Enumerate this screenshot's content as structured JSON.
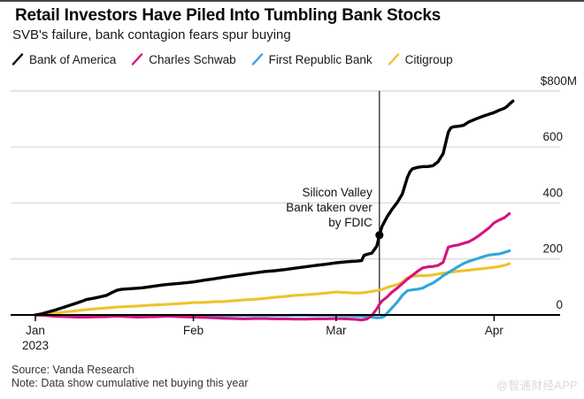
{
  "header": {
    "title": "Retail Investors Have Piled Into Tumbling Bank Stocks",
    "subtitle": "SVB's failure, bank contagion fears spur buying"
  },
  "legend": {
    "items": [
      {
        "label": "Bank of America",
        "color": "#000000"
      },
      {
        "label": "Charles Schwab",
        "color": "#d6137c"
      },
      {
        "label": "First Republic Bank",
        "color": "#2fa6db"
      },
      {
        "label": "Citigroup",
        "color": "#edc32c"
      }
    ]
  },
  "chart_data": {
    "type": "line",
    "title": "Retail Investors Have Piled Into Tumbling Bank Stocks",
    "subtitle": "SVB's failure, bank contagion fears spur buying",
    "unit": "USD millions, cumulative net buying",
    "ylim": [
      -20,
      800
    ],
    "grid": "horizontal",
    "legend_position": "top",
    "colors": {
      "grid": "#dadada",
      "axis": "#000000",
      "annotation": "#111111"
    },
    "y_axis": {
      "ticks": [
        {
          "value": 0,
          "label": "0"
        },
        {
          "value": 200,
          "label": "200"
        },
        {
          "value": 400,
          "label": "400"
        },
        {
          "value": 600,
          "label": "600"
        },
        {
          "value": 800,
          "label": "$800M"
        }
      ]
    },
    "x_axis": {
      "ticks": [
        {
          "label": "Jan",
          "sublabel": "2023",
          "day": 0
        },
        {
          "label": "Feb",
          "sublabel": "",
          "day": 31
        },
        {
          "label": "Mar",
          "sublabel": "",
          "day": 59
        },
        {
          "label": "Apr",
          "sublabel": "",
          "day": 90
        }
      ]
    },
    "annotation": {
      "text_lines": [
        "Silicon Valley",
        "Bank taken over",
        "by FDIC"
      ],
      "day": 67.5,
      "marker_series": "Bank of America",
      "marker_value": 285
    },
    "series": [
      {
        "name": "Citigroup",
        "color": "#edc32c",
        "points": [
          [
            0,
            0
          ],
          [
            2,
            3
          ],
          [
            4,
            7
          ],
          [
            6,
            11
          ],
          [
            8,
            15
          ],
          [
            10,
            19
          ],
          [
            12,
            22
          ],
          [
            14,
            25
          ],
          [
            16,
            28
          ],
          [
            18,
            30
          ],
          [
            20,
            32
          ],
          [
            22,
            34
          ],
          [
            24,
            36
          ],
          [
            26,
            38
          ],
          [
            28,
            40
          ],
          [
            31,
            44
          ],
          [
            33,
            45
          ],
          [
            35,
            47
          ],
          [
            37,
            48
          ],
          [
            39,
            51
          ],
          [
            41,
            54
          ],
          [
            43,
            56
          ],
          [
            45,
            59
          ],
          [
            47,
            63
          ],
          [
            49,
            66
          ],
          [
            51,
            70
          ],
          [
            53,
            72
          ],
          [
            55,
            75
          ],
          [
            57,
            78
          ],
          [
            59,
            82
          ],
          [
            60,
            81
          ],
          [
            61,
            80
          ],
          [
            62,
            79
          ],
          [
            63,
            78
          ],
          [
            64,
            79
          ],
          [
            65,
            81
          ],
          [
            66,
            84
          ],
          [
            67,
            87
          ],
          [
            68,
            91
          ],
          [
            69,
            98
          ],
          [
            70,
            104
          ],
          [
            71,
            108
          ],
          [
            72,
            118
          ],
          [
            73,
            133
          ],
          [
            74,
            138
          ],
          [
            75,
            140
          ],
          [
            76,
            140
          ],
          [
            77,
            141
          ],
          [
            78,
            143
          ],
          [
            79,
            146
          ],
          [
            80,
            149
          ],
          [
            81,
            152
          ],
          [
            82,
            154
          ],
          [
            83,
            156
          ],
          [
            84,
            158
          ],
          [
            85,
            160
          ],
          [
            86,
            162
          ],
          [
            87,
            164
          ],
          [
            88,
            166
          ],
          [
            89,
            168
          ],
          [
            90,
            170
          ],
          [
            91,
            173
          ],
          [
            92,
            177
          ],
          [
            93,
            183
          ]
        ]
      },
      {
        "name": "First Republic Bank",
        "color": "#2fa6db",
        "points": [
          [
            0,
            0
          ],
          [
            2,
            -1
          ],
          [
            4,
            -2
          ],
          [
            6,
            -3
          ],
          [
            8,
            -3
          ],
          [
            10,
            -2
          ],
          [
            12,
            -2
          ],
          [
            14,
            -2
          ],
          [
            16,
            -3
          ],
          [
            18,
            -2
          ],
          [
            20,
            -2
          ],
          [
            22,
            -3
          ],
          [
            24,
            -3
          ],
          [
            26,
            -3
          ],
          [
            28,
            -2
          ],
          [
            31,
            -2
          ],
          [
            33,
            -3
          ],
          [
            35,
            -3
          ],
          [
            37,
            -3
          ],
          [
            39,
            -2
          ],
          [
            41,
            -2
          ],
          [
            43,
            -2
          ],
          [
            45,
            -2
          ],
          [
            47,
            -2
          ],
          [
            49,
            -2
          ],
          [
            51,
            -1
          ],
          [
            53,
            -1
          ],
          [
            55,
            -2
          ],
          [
            57,
            -2
          ],
          [
            59,
            -2
          ],
          [
            61,
            -3
          ],
          [
            63,
            -4
          ],
          [
            64,
            -5
          ],
          [
            65,
            -6
          ],
          [
            66,
            -8
          ],
          [
            67,
            -10
          ],
          [
            68,
            -9
          ],
          [
            68.5,
            -4
          ],
          [
            69,
            6
          ],
          [
            70,
            26
          ],
          [
            71,
            46
          ],
          [
            72,
            70
          ],
          [
            73,
            87
          ],
          [
            74,
            90
          ],
          [
            75,
            92
          ],
          [
            76,
            96
          ],
          [
            77,
            106
          ],
          [
            78,
            114
          ],
          [
            79,
            126
          ],
          [
            80,
            140
          ],
          [
            81,
            151
          ],
          [
            82,
            162
          ],
          [
            83,
            173
          ],
          [
            84,
            184
          ],
          [
            85,
            191
          ],
          [
            86,
            197
          ],
          [
            87,
            203
          ],
          [
            88,
            209
          ],
          [
            89,
            214
          ],
          [
            90,
            216
          ],
          [
            91,
            218
          ],
          [
            92,
            223
          ],
          [
            93,
            229
          ]
        ]
      },
      {
        "name": "Charles Schwab",
        "color": "#d6137c",
        "points": [
          [
            0,
            0
          ],
          [
            2,
            -2
          ],
          [
            4,
            -5
          ],
          [
            6,
            -6
          ],
          [
            8,
            -8
          ],
          [
            10,
            -8
          ],
          [
            12,
            -7
          ],
          [
            14,
            -6
          ],
          [
            16,
            -4
          ],
          [
            18,
            -6
          ],
          [
            20,
            -8
          ],
          [
            22,
            -7
          ],
          [
            24,
            -6
          ],
          [
            26,
            -4
          ],
          [
            28,
            -6
          ],
          [
            31,
            -8
          ],
          [
            33,
            -9
          ],
          [
            35,
            -10
          ],
          [
            37,
            -12
          ],
          [
            39,
            -13
          ],
          [
            41,
            -14
          ],
          [
            43,
            -13
          ],
          [
            45,
            -13
          ],
          [
            47,
            -14
          ],
          [
            49,
            -14
          ],
          [
            51,
            -15
          ],
          [
            53,
            -15
          ],
          [
            55,
            -14
          ],
          [
            57,
            -14
          ],
          [
            59,
            -13
          ],
          [
            61,
            -14
          ],
          [
            63,
            -16
          ],
          [
            64,
            -18
          ],
          [
            65,
            -15
          ],
          [
            66,
            -2
          ],
          [
            67,
            22
          ],
          [
            67.5,
            38
          ],
          [
            68,
            50
          ],
          [
            69,
            64
          ],
          [
            70,
            82
          ],
          [
            71,
            96
          ],
          [
            72,
            112
          ],
          [
            73,
            128
          ],
          [
            74,
            142
          ],
          [
            75,
            156
          ],
          [
            76,
            168
          ],
          [
            77,
            172
          ],
          [
            78,
            173
          ],
          [
            79,
            177
          ],
          [
            80,
            188
          ],
          [
            80.5,
            215
          ],
          [
            81,
            242
          ],
          [
            82,
            247
          ],
          [
            83,
            250
          ],
          [
            84,
            256
          ],
          [
            85,
            261
          ],
          [
            86,
            271
          ],
          [
            87,
            283
          ],
          [
            88,
            297
          ],
          [
            89,
            311
          ],
          [
            90,
            329
          ],
          [
            91,
            339
          ],
          [
            92,
            347
          ],
          [
            93,
            362
          ]
        ]
      },
      {
        "name": "Bank of America",
        "color": "#000000",
        "points": [
          [
            0,
            0
          ],
          [
            1,
            3
          ],
          [
            2,
            8
          ],
          [
            3,
            13
          ],
          [
            4,
            18
          ],
          [
            5,
            24
          ],
          [
            6,
            30
          ],
          [
            7,
            36
          ],
          [
            8,
            42
          ],
          [
            9,
            48
          ],
          [
            10,
            55
          ],
          [
            11,
            58
          ],
          [
            12,
            62
          ],
          [
            13,
            66
          ],
          [
            14,
            70
          ],
          [
            15,
            80
          ],
          [
            16,
            88
          ],
          [
            17,
            92
          ],
          [
            19,
            94
          ],
          [
            21,
            97
          ],
          [
            23,
            102
          ],
          [
            25,
            107
          ],
          [
            27,
            111
          ],
          [
            29,
            114
          ],
          [
            31,
            118
          ],
          [
            33,
            124
          ],
          [
            35,
            129
          ],
          [
            37,
            135
          ],
          [
            39,
            140
          ],
          [
            41,
            145
          ],
          [
            43,
            150
          ],
          [
            45,
            155
          ],
          [
            47,
            158
          ],
          [
            49,
            162
          ],
          [
            51,
            167
          ],
          [
            53,
            172
          ],
          [
            55,
            177
          ],
          [
            57,
            181
          ],
          [
            59,
            186
          ],
          [
            60,
            188
          ],
          [
            61,
            190
          ],
          [
            62,
            191
          ],
          [
            63,
            192
          ],
          [
            64,
            194
          ],
          [
            64.5,
            213
          ],
          [
            65,
            216
          ],
          [
            66,
            221
          ],
          [
            67,
            246
          ],
          [
            67.5,
            285
          ],
          [
            68,
            316
          ],
          [
            69,
            350
          ],
          [
            70,
            378
          ],
          [
            71,
            402
          ],
          [
            72,
            432
          ],
          [
            73,
            492
          ],
          [
            73.5,
            512
          ],
          [
            74,
            522
          ],
          [
            75,
            527
          ],
          [
            76,
            530
          ],
          [
            77,
            530
          ],
          [
            78,
            533
          ],
          [
            79,
            547
          ],
          [
            80,
            576
          ],
          [
            81,
            652
          ],
          [
            81.5,
            668
          ],
          [
            82,
            672
          ],
          [
            83,
            674
          ],
          [
            84,
            677
          ],
          [
            85,
            689
          ],
          [
            86,
            697
          ],
          [
            87,
            704
          ],
          [
            88,
            711
          ],
          [
            89,
            717
          ],
          [
            90,
            723
          ],
          [
            91,
            731
          ],
          [
            92,
            738
          ],
          [
            92.5,
            744
          ],
          [
            93,
            753
          ],
          [
            93.7,
            764
          ]
        ]
      }
    ]
  },
  "footer": {
    "source": "Source: Vanda Research",
    "note": "Note: Data show cumulative net buying this year",
    "watermark": "@智通财经APP"
  }
}
